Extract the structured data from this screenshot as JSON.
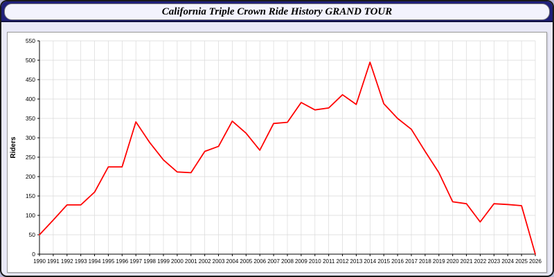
{
  "header": {
    "title": "California Triple Crown Ride History GRAND TOUR"
  },
  "chart_data": {
    "type": "line",
    "title": "California Triple Crown Ride History GRAND TOUR",
    "xlabel": "",
    "ylabel": "Riders",
    "x": [
      1990,
      1991,
      1992,
      1993,
      1994,
      1995,
      1996,
      1997,
      1998,
      1999,
      2000,
      2001,
      2002,
      2003,
      2004,
      2005,
      2006,
      2007,
      2008,
      2009,
      2010,
      2011,
      2012,
      2013,
      2014,
      2015,
      2016,
      2017,
      2018,
      2019,
      2020,
      2021,
      2022,
      2023,
      2024,
      2025,
      2026
    ],
    "values": [
      50,
      88,
      127,
      127,
      160,
      225,
      225,
      341,
      288,
      243,
      212,
      210,
      265,
      278,
      343,
      312,
      268,
      337,
      340,
      391,
      372,
      377,
      411,
      386,
      495,
      388,
      350,
      322,
      265,
      210,
      135,
      130,
      83,
      130,
      128,
      125,
      0
    ],
    "ylim": [
      0,
      550
    ],
    "ytick_step": 50,
    "grid": true,
    "legend": "none",
    "line_color": "#ff0000",
    "grid_color": "#d9d9d9",
    "axis_color": "#000000"
  }
}
